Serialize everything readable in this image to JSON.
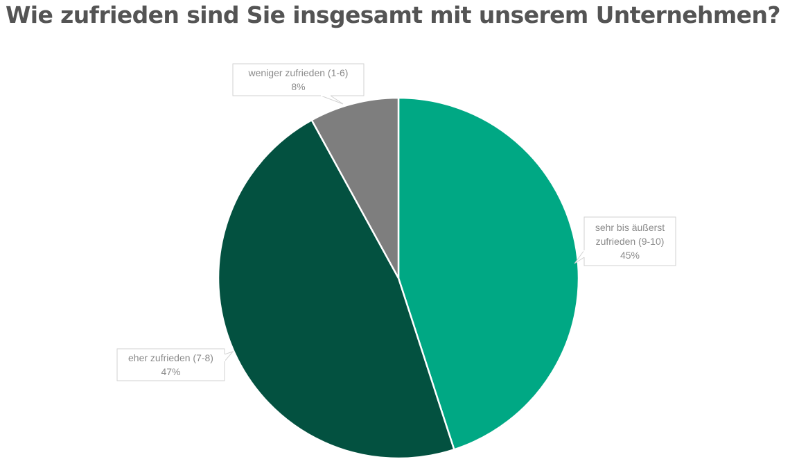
{
  "chart_data": {
    "type": "pie",
    "title": "Wie zufrieden sind Sie insgesamt mit unserem Unternehmen?",
    "slices": [
      {
        "label_lines": [
          "sehr bis äußerst",
          "zufrieden (9-10)"
        ],
        "value": 45,
        "value_label": "45%",
        "color": "#00a884"
      },
      {
        "label_lines": [
          "eher zufrieden (7-8)"
        ],
        "value": 47,
        "value_label": "47%",
        "color": "#035140"
      },
      {
        "label_lines": [
          "weniger zufrieden (1-6)"
        ],
        "value": 8,
        "value_label": "8%",
        "color": "#7e7e7e"
      }
    ],
    "start_angle": "12 o'clock",
    "direction": "clockwise",
    "labels": "data callouts"
  }
}
